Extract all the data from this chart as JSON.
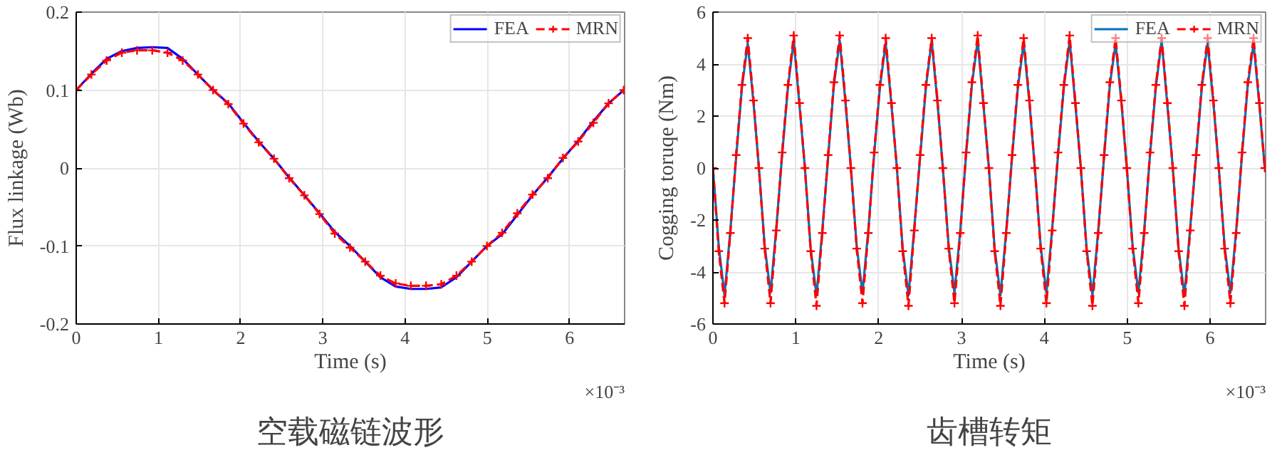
{
  "chart_data": [
    {
      "type": "line",
      "title": "空载磁链波形",
      "xlabel": "Time (s)",
      "ylabel": "Flux linkage (Wb)",
      "annotations": [
        "×10⁻³"
      ],
      "xlim": [
        0,
        6.67
      ],
      "xticks": [
        0,
        1,
        2,
        3,
        4,
        5,
        6
      ],
      "ylim": [
        -0.2,
        0.2
      ],
      "yticks": [
        -0.2,
        -0.1,
        0,
        0.1,
        0.2
      ],
      "grid": true,
      "legend": "top right",
      "x": [
        0,
        0.185,
        0.37,
        0.555,
        0.74,
        0.925,
        1.11,
        1.295,
        1.48,
        1.665,
        1.85,
        2.035,
        2.22,
        2.405,
        2.59,
        2.775,
        2.96,
        3.145,
        3.33,
        3.515,
        3.7,
        3.885,
        4.07,
        4.255,
        4.44,
        4.625,
        4.81,
        4.995,
        5.18,
        5.365,
        5.55,
        5.735,
        5.92,
        6.105,
        6.29,
        6.475,
        6.66
      ],
      "series": [
        {
          "name": "FEA",
          "color": "#0000ff",
          "line_style": "solid",
          "marker": "none",
          "values": [
            0.1,
            0.121,
            0.14,
            0.15,
            0.154,
            0.155,
            0.154,
            0.14,
            0.12,
            0.1,
            0.083,
            0.058,
            0.034,
            0.012,
            -0.012,
            -0.035,
            -0.058,
            -0.082,
            -0.1,
            -0.12,
            -0.14,
            -0.152,
            -0.155,
            -0.155,
            -0.153,
            -0.14,
            -0.12,
            -0.1,
            -0.085,
            -0.06,
            -0.035,
            -0.012,
            0.012,
            0.035,
            0.06,
            0.083,
            0.1
          ]
        },
        {
          "name": "MRN",
          "color": "#ff0000",
          "line_style": "dashed",
          "marker": "cross",
          "values": [
            0.1,
            0.12,
            0.138,
            0.148,
            0.151,
            0.151,
            0.148,
            0.138,
            0.12,
            0.1,
            0.082,
            0.057,
            0.033,
            0.012,
            -0.013,
            -0.035,
            -0.059,
            -0.084,
            -0.102,
            -0.12,
            -0.138,
            -0.148,
            -0.151,
            -0.151,
            -0.149,
            -0.138,
            -0.12,
            -0.1,
            -0.083,
            -0.058,
            -0.034,
            -0.013,
            0.013,
            0.034,
            0.058,
            0.083,
            0.1
          ]
        }
      ]
    },
    {
      "type": "line",
      "title": "齿槽转矩",
      "xlabel": "Time (s)",
      "ylabel": "Cogging toruqe (Nm)",
      "annotations": [
        "×10⁻³"
      ],
      "xlim": [
        0,
        6.67
      ],
      "xticks": [
        0,
        1,
        2,
        3,
        4,
        5,
        6
      ],
      "ylim": [
        -6,
        6
      ],
      "yticks": [
        -6,
        -4,
        -2,
        0,
        2,
        4,
        6
      ],
      "grid": true,
      "legend": "top right",
      "x": [
        0,
        0.07,
        0.14,
        0.21,
        0.28,
        0.35,
        0.42,
        0.49,
        0.555,
        0.625,
        0.695,
        0.765,
        0.835,
        0.905,
        0.975,
        1.045,
        1.11,
        1.18,
        1.25,
        1.32,
        1.39,
        1.46,
        1.53,
        1.6,
        1.665,
        1.735,
        1.805,
        1.875,
        1.945,
        2.015,
        2.085,
        2.155,
        2.22,
        2.29,
        2.36,
        2.43,
        2.5,
        2.57,
        2.64,
        2.71,
        2.775,
        2.845,
        2.915,
        2.985,
        3.055,
        3.125,
        3.195,
        3.265,
        3.33,
        3.4,
        3.47,
        3.54,
        3.61,
        3.68,
        3.75,
        3.82,
        3.885,
        3.955,
        4.025,
        4.095,
        4.165,
        4.235,
        4.305,
        4.375,
        4.44,
        4.51,
        4.58,
        4.65,
        4.72,
        4.79,
        4.86,
        4.93,
        4.995,
        5.065,
        5.135,
        5.205,
        5.275,
        5.345,
        5.415,
        5.485,
        5.55,
        5.62,
        5.69,
        5.76,
        5.83,
        5.9,
        5.97,
        6.04,
        6.105,
        6.175,
        6.245,
        6.315,
        6.385,
        6.455,
        6.525,
        6.595,
        6.66
      ],
      "series": [
        {
          "name": "FEA",
          "color": "#0072bd",
          "line_style": "solid",
          "marker": "none",
          "values": [
            0,
            -3,
            -4.9,
            -2.4,
            0.4,
            3.1,
            4.8,
            2.5,
            0,
            -3,
            -4.8,
            -2.3,
            0.5,
            3.1,
            4.9,
            2.4,
            0,
            -3.1,
            -4.9,
            -2.4,
            0.4,
            3.2,
            4.9,
            2.5,
            0,
            -3,
            -4.8,
            -2.4,
            0.5,
            3.1,
            4.8,
            2.4,
            0,
            -3.1,
            -4.9,
            -2.3,
            0.4,
            3.1,
            4.9,
            2.5,
            0,
            -3,
            -4.8,
            -2.4,
            0.5,
            3.2,
            4.9,
            2.4,
            0,
            -3.1,
            -4.9,
            -2.4,
            0.4,
            3.1,
            4.8,
            2.5,
            0,
            -3,
            -4.8,
            -2.3,
            0.5,
            3.1,
            4.9,
            2.4,
            0,
            -3.1,
            -4.9,
            -2.4,
            0.4,
            3.2,
            4.8,
            2.5,
            0,
            -3,
            -4.8,
            -2.4,
            0.5,
            3.1,
            4.9,
            2.4,
            0,
            -3.1,
            -4.9,
            -2.3,
            0.4,
            3.1,
            4.8,
            2.5,
            0,
            -3,
            -4.8,
            -2.4,
            0.5,
            3.2,
            4.8,
            2.4,
            0
          ]
        },
        {
          "name": "MRN",
          "color": "#ff0000",
          "line_style": "dashed",
          "marker": "cross",
          "values": [
            0,
            -3.2,
            -5.2,
            -2.5,
            0.5,
            3.2,
            5,
            2.6,
            0,
            -3.1,
            -5.2,
            -2.4,
            0.6,
            3.2,
            5.1,
            2.5,
            0,
            -3.2,
            -5.3,
            -2.5,
            0.5,
            3.3,
            5.1,
            2.6,
            0,
            -3.1,
            -5.2,
            -2.5,
            0.6,
            3.2,
            5,
            2.5,
            0,
            -3.2,
            -5.3,
            -2.4,
            0.5,
            3.2,
            5,
            2.6,
            0,
            -3.1,
            -5.2,
            -2.5,
            0.6,
            3.3,
            5.1,
            2.5,
            0,
            -3.2,
            -5.3,
            -2.5,
            0.5,
            3.2,
            5,
            2.6,
            0,
            -3.1,
            -5.2,
            -2.4,
            0.6,
            3.2,
            5.1,
            2.5,
            0,
            -3.2,
            -5.3,
            -2.5,
            0.5,
            3.3,
            5,
            2.6,
            0,
            -3.1,
            -5.2,
            -2.5,
            0.6,
            3.2,
            5,
            2.5,
            0,
            -3.2,
            -5.3,
            -2.4,
            0.5,
            3.2,
            5,
            2.6,
            0,
            -3.1,
            -5.2,
            -2.5,
            0.6,
            3.3,
            5,
            2.5,
            0
          ]
        }
      ]
    }
  ]
}
